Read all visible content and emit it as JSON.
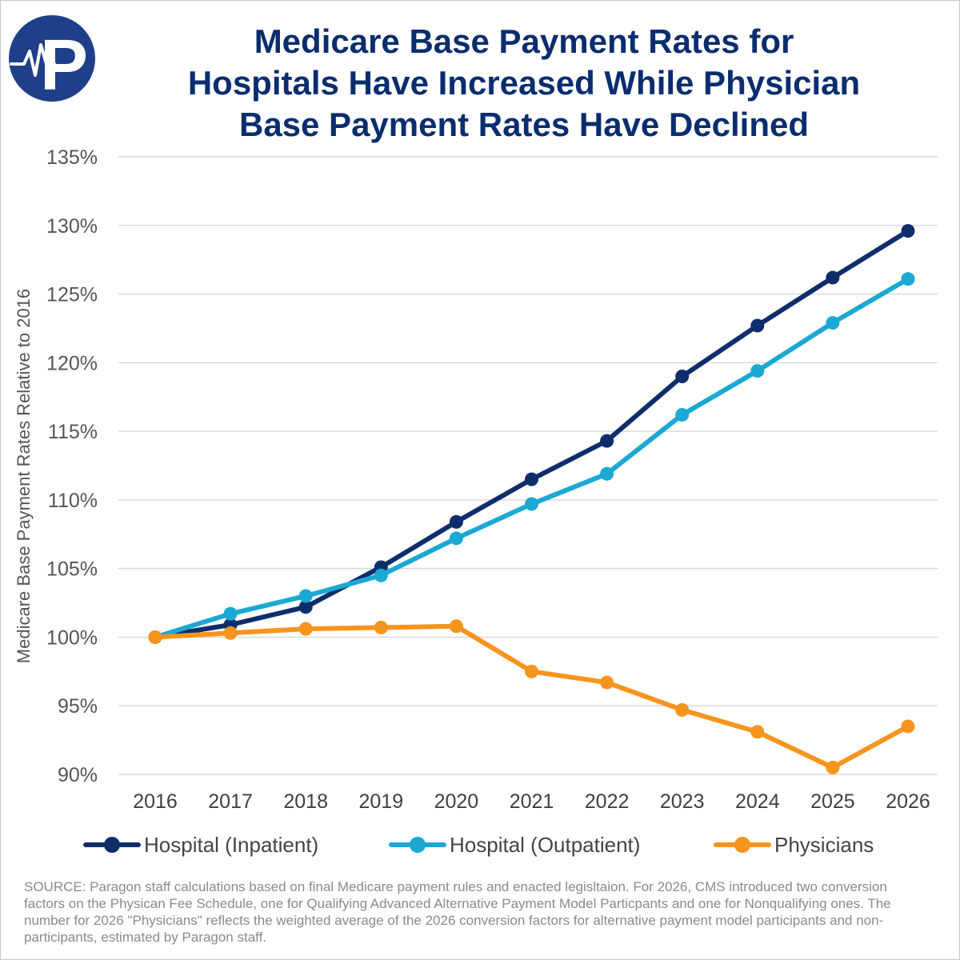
{
  "title_lines": [
    "Medicare Base Payment Rates for",
    "Hospitals Have Increased While Physician",
    "Base Payment Rates Have Declined"
  ],
  "logo": {
    "icon": "paragon-p-logo-with-heartbeat",
    "letter": "P"
  },
  "colors": {
    "inpatient": "#0e2d6b",
    "outpatient": "#1ba9d4",
    "physicians": "#f7941d",
    "grid": "#d9d9d9",
    "title": "#0a2d6e"
  },
  "chart_data": {
    "type": "line",
    "title": "Medicare Base Payment Rates for Hospitals Have Increased While Physician Base Payment Rates Have Declined",
    "xlabel": "",
    "ylabel": "Medicare Base Payment Rates Relative to 2016",
    "categories": [
      "2016",
      "2017",
      "2018",
      "2019",
      "2020",
      "2021",
      "2022",
      "2023",
      "2024",
      "2025",
      "2026"
    ],
    "ylim": [
      90,
      135
    ],
    "yticks": [
      90,
      95,
      100,
      105,
      110,
      115,
      120,
      125,
      130,
      135
    ],
    "ytick_labels": [
      "90%",
      "95%",
      "100%",
      "105%",
      "110%",
      "115%",
      "120%",
      "125%",
      "130%",
      "135%"
    ],
    "grid": true,
    "legend_position": "bottom",
    "series": [
      {
        "name": "Hospital (Inpatient)",
        "color_key": "inpatient",
        "values": [
          100.0,
          100.9,
          102.2,
          105.1,
          108.4,
          111.5,
          114.3,
          119.0,
          122.7,
          126.2,
          129.6
        ]
      },
      {
        "name": "Hospital (Outpatient)",
        "color_key": "outpatient",
        "values": [
          100.0,
          101.7,
          103.0,
          104.5,
          107.2,
          109.7,
          111.9,
          116.2,
          119.4,
          122.9,
          126.1
        ]
      },
      {
        "name": "Physicians",
        "color_key": "physicians",
        "values": [
          100.0,
          100.3,
          100.6,
          100.7,
          100.8,
          97.5,
          96.7,
          94.7,
          93.1,
          90.5,
          93.5
        ]
      }
    ]
  },
  "source_text": "SOURCE: Paragon staff calculations based on final Medicare payment rules and enacted legisltaion. For 2026, CMS introduced two conversion factors on the Physican Fee Schedule, one for Qualifying Advanced Alternative Payment Model Particpants and one for Nonqualifying ones. The number for 2026 \"Physicians\" reflects the weighted average of the 2026 conversion factors for alternative payment model participants and non-participants, estimated by Paragon staff."
}
